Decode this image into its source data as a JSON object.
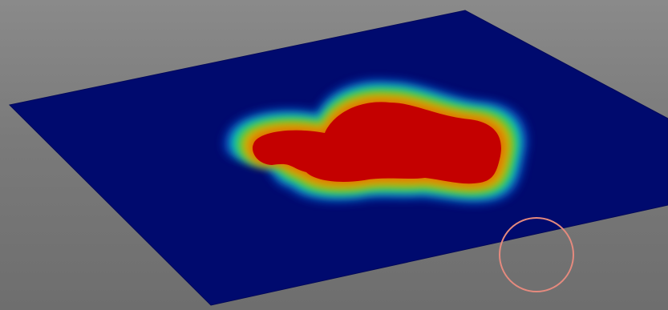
{
  "viewport": {
    "background_color": "#777777"
  },
  "surface": {
    "base_color": "#000a6e",
    "colormap": [
      "#000a6e",
      "#0046c8",
      "#00c8c8",
      "#3cc83c",
      "#c8c800",
      "#e07800",
      "#c80000"
    ],
    "peak_color": "#c40000"
  },
  "annotation": {
    "shape": "circle",
    "stroke_color": "#e58a7e"
  }
}
